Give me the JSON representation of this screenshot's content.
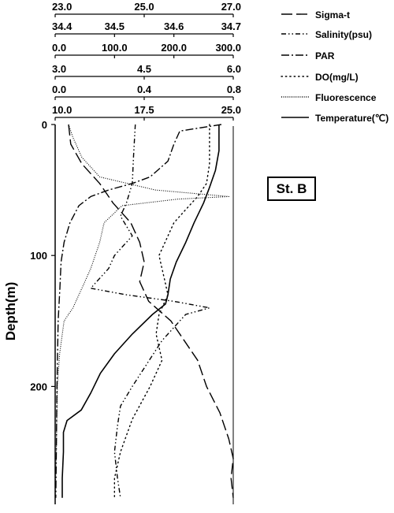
{
  "chart_data": {
    "type": "line",
    "ylabel": "Depth(m)",
    "ylim": [
      0,
      290
    ],
    "y_ticks": [
      "0",
      "100",
      "200"
    ],
    "y_tick_values": [
      0,
      100,
      200
    ],
    "station_label": "St. B",
    "axes": [
      {
        "name": "Sigma-t",
        "ticks": [
          "23.0",
          "25.0",
          "27.0"
        ],
        "tick_values": [
          23,
          25,
          27
        ],
        "range": [
          23,
          27
        ]
      },
      {
        "name": "Salinity(psu)",
        "ticks": [
          "34.4",
          "34.5",
          "34.6",
          "34.7"
        ],
        "tick_values": [
          34.4,
          34.5,
          34.6,
          34.7
        ],
        "range": [
          34.4,
          34.7
        ]
      },
      {
        "name": "PAR",
        "ticks": [
          "0.0",
          "100.0",
          "200.0",
          "300.0"
        ],
        "tick_values": [
          0,
          100,
          200,
          300
        ],
        "range": [
          0,
          300
        ]
      },
      {
        "name": "DO(mg/L)",
        "ticks": [
          "3.0",
          "4.5",
          "6.0"
        ],
        "tick_values": [
          3,
          4.5,
          6
        ],
        "range": [
          3,
          6
        ]
      },
      {
        "name": "Fluorescence",
        "ticks": [
          "0.0",
          "0.4",
          "0.8"
        ],
        "tick_values": [
          0,
          0.4,
          0.8
        ],
        "range": [
          0,
          0.8
        ]
      },
      {
        "name": "Temperature(℃)",
        "ticks": [
          "10.0",
          "17.5",
          "25.0"
        ],
        "tick_values": [
          10,
          17.5,
          25
        ],
        "range": [
          10,
          25
        ]
      }
    ],
    "series": [
      {
        "name": "Sigma-t",
        "style": "longdash",
        "x_axis": 0,
        "values": [
          [
            23.3,
            0
          ],
          [
            23.35,
            15
          ],
          [
            23.6,
            30
          ],
          [
            24.0,
            45
          ],
          [
            24.3,
            60
          ],
          [
            24.7,
            75
          ],
          [
            24.9,
            90
          ],
          [
            25.0,
            105
          ],
          [
            24.9,
            120
          ],
          [
            25.1,
            135
          ],
          [
            25.6,
            150
          ],
          [
            25.9,
            165
          ],
          [
            26.2,
            180
          ],
          [
            26.4,
            200
          ],
          [
            26.7,
            220
          ],
          [
            26.9,
            240
          ],
          [
            27.0,
            255
          ],
          [
            26.95,
            270
          ],
          [
            27.0,
            285
          ]
        ]
      },
      {
        "name": "Salinity(psu)",
        "style": "dashdotdot",
        "x_axis": 1,
        "values": [
          [
            34.535,
            0
          ],
          [
            34.532,
            25
          ],
          [
            34.53,
            45
          ],
          [
            34.52,
            60
          ],
          [
            34.51,
            70
          ],
          [
            34.53,
            85
          ],
          [
            34.5,
            100
          ],
          [
            34.49,
            110
          ],
          [
            34.47,
            120
          ],
          [
            34.46,
            125
          ],
          [
            34.52,
            130
          ],
          [
            34.6,
            135
          ],
          [
            34.66,
            140
          ],
          [
            34.62,
            145
          ],
          [
            34.58,
            165
          ],
          [
            34.53,
            200
          ],
          [
            34.51,
            215
          ],
          [
            34.505,
            230
          ],
          [
            34.5,
            250
          ],
          [
            34.505,
            270
          ],
          [
            34.51,
            285
          ]
        ]
      },
      {
        "name": "PAR",
        "style": "dashdot",
        "x_axis": 2,
        "values": [
          [
            280,
            0
          ],
          [
            210,
            5
          ],
          [
            200,
            15
          ],
          [
            190,
            28
          ],
          [
            160,
            40
          ],
          [
            130,
            45
          ],
          [
            90,
            50
          ],
          [
            60,
            55
          ],
          [
            40,
            62
          ],
          [
            25,
            75
          ],
          [
            15,
            90
          ],
          [
            10,
            105
          ],
          [
            8,
            125
          ],
          [
            5,
            150
          ],
          [
            3,
            200
          ],
          [
            2,
            250
          ],
          [
            1,
            285
          ]
        ]
      },
      {
        "name": "DO(mg/L)",
        "style": "dotted",
        "x_axis": 3,
        "values": [
          [
            5.6,
            0
          ],
          [
            5.6,
            30
          ],
          [
            5.55,
            45
          ],
          [
            5.4,
            55
          ],
          [
            5.2,
            65
          ],
          [
            5.0,
            75
          ],
          [
            4.85,
            90
          ],
          [
            4.75,
            100
          ],
          [
            4.8,
            110
          ],
          [
            4.85,
            120
          ],
          [
            4.9,
            130
          ],
          [
            4.75,
            145
          ],
          [
            4.7,
            160
          ],
          [
            4.8,
            180
          ],
          [
            4.6,
            200
          ],
          [
            4.3,
            225
          ],
          [
            4.1,
            250
          ],
          [
            4.0,
            270
          ],
          [
            4.0,
            285
          ]
        ]
      },
      {
        "name": "Fluorescence",
        "style": "finedot",
        "x_axis": 4,
        "values": [
          [
            0.06,
            0
          ],
          [
            0.08,
            10
          ],
          [
            0.12,
            25
          ],
          [
            0.2,
            40
          ],
          [
            0.45,
            50
          ],
          [
            0.78,
            55
          ],
          [
            0.55,
            57
          ],
          [
            0.3,
            62
          ],
          [
            0.22,
            75
          ],
          [
            0.2,
            90
          ],
          [
            0.18,
            100
          ],
          [
            0.16,
            110
          ],
          [
            0.12,
            125
          ],
          [
            0.08,
            140
          ],
          [
            0.04,
            150
          ],
          [
            0.02,
            175
          ],
          [
            0.01,
            200
          ],
          [
            0.005,
            250
          ],
          [
            0.0,
            285
          ]
        ]
      },
      {
        "name": "Temperature(℃)",
        "style": "solid",
        "x_axis": 5,
        "values": [
          [
            23.8,
            0
          ],
          [
            23.8,
            20
          ],
          [
            23.5,
            35
          ],
          [
            23.0,
            48
          ],
          [
            22.5,
            60
          ],
          [
            21.7,
            75
          ],
          [
            21.0,
            90
          ],
          [
            20.2,
            105
          ],
          [
            19.7,
            118
          ],
          [
            19.5,
            130
          ],
          [
            19.3,
            137
          ],
          [
            18.2,
            145
          ],
          [
            16.5,
            160
          ],
          [
            15.0,
            175
          ],
          [
            13.8,
            190
          ],
          [
            13.0,
            205
          ],
          [
            12.2,
            218
          ],
          [
            11.0,
            226
          ],
          [
            10.7,
            235
          ],
          [
            10.7,
            250
          ],
          [
            10.6,
            270
          ],
          [
            10.6,
            285
          ]
        ]
      }
    ]
  }
}
